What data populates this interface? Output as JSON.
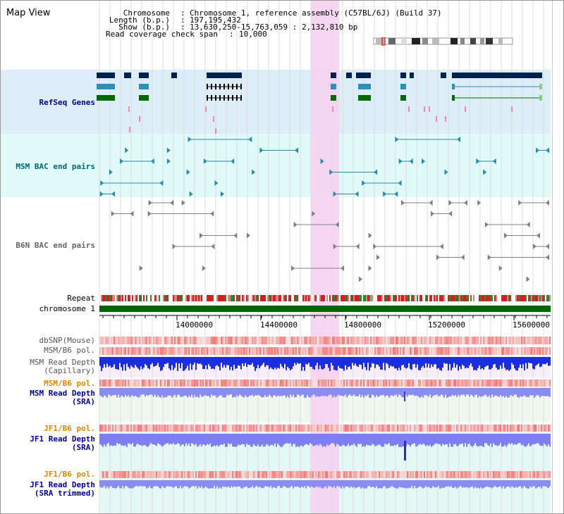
{
  "view_title": "Map View",
  "header": {
    "chromosome_label": "Chromosome",
    "chromosome_value": "Chromosome 1, reference assembly (C57BL/6J) (Build 37)",
    "length_label": "Length (b.p.)",
    "length_value": "197,195,432",
    "show_label": "Show (b.p.)",
    "show_value": "13,630,250-15,763,059 : 2,132,810 bp",
    "coverage_label": "Read coverage check span",
    "coverage_value": "10,000"
  },
  "tracks": {
    "refseq": "RefSeq Genes",
    "msm_bac": "MSM BAC end pairs",
    "b6n_bac": "B6N BAC end pairs",
    "repeat": "Repeat",
    "chromosome": "chromosome 1",
    "dbsnp": "dbSNP(Mouse)",
    "msm_b6_pol_1": "MSM/B6 pol.",
    "msm_depth_cap_1": "MSM Read Depth",
    "msm_depth_cap_2": "(Capillary)",
    "msm_b6_pol_2": "MSM/B6 pol.",
    "msm_depth_sra_1": "MSM Read Depth",
    "msm_depth_sra_2": "(SRA)",
    "jf1_b6_pol_1": "JF1/B6 pol.",
    "jf1_depth_sra_1": "JF1 Read Depth",
    "jf1_depth_sra_2": "(SRA)",
    "jf1_b6_pol_2": "JF1/B6 pol.",
    "jf1_depth_trim_1": "JF1 Read Depth",
    "jf1_depth_trim_2": "(SRA trimmed)"
  },
  "axis": {
    "ticks": [
      "14000000",
      "14400000",
      "14800000",
      "15200000",
      "15600000"
    ]
  },
  "colors": {
    "refseq_bg": "#ddeef8",
    "msm_bac_bg": "#e0faf8",
    "highlight": "#f6d2f0",
    "refseq_label": "#000099",
    "msm_label": "#006677",
    "b6n_label": "#666666",
    "pol_label": "#dd8800",
    "depth_label": "#000099",
    "chromosome_bar": "#006600",
    "gene_dark": "#002050",
    "gene_teal": "#2e8fb8",
    "gene_green": "#006a00"
  }
}
